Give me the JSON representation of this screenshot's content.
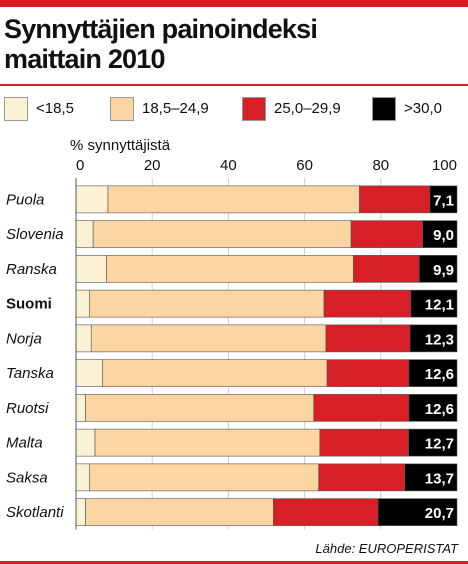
{
  "title": "Synnyttäjien painoindeksi\nmaittain 2010",
  "source": "Lähde: EUROPERISTAT",
  "colors": {
    "accent": "#d61f26",
    "grid": "#cfcfcf"
  },
  "chart_data": {
    "type": "bar",
    "orientation": "horizontal",
    "stacked": true,
    "title": "Synnyttäjien painoindeksi maittain 2010",
    "xlabel": "% synnyttäjistä",
    "xlim": [
      0,
      100
    ],
    "xticks": [
      0,
      20,
      40,
      60,
      80,
      100
    ],
    "grid": true,
    "legend_position": "top",
    "highlight_category": "Suomi",
    "categories": [
      "Puola",
      "Slovenia",
      "Ranska",
      "Suomi",
      "Norja",
      "Tanska",
      "Ruotsi",
      "Malta",
      "Saksa",
      "Skotlanti"
    ],
    "series": [
      {
        "name": "<18,5",
        "color": "#fbf2d6",
        "values": [
          8.4,
          4.5,
          8.0,
          3.5,
          4.0,
          7.0,
          2.5,
          5.0,
          3.5,
          2.5
        ]
      },
      {
        "name": "18,5–24,9",
        "color": "#fcd6a2",
        "values": [
          66.0,
          67.7,
          64.8,
          61.6,
          61.6,
          58.9,
          59.9,
          59.0,
          60.2,
          49.3
        ]
      },
      {
        "name": "25,0–29,9",
        "color": "#d61f26",
        "values": [
          18.5,
          18.8,
          17.3,
          22.8,
          22.1,
          21.5,
          25.0,
          23.3,
          22.6,
          27.5
        ]
      },
      {
        "name": ">30,0",
        "color": "#000000",
        "values": [
          7.1,
          9.0,
          9.9,
          12.1,
          12.3,
          12.6,
          12.6,
          12.7,
          13.7,
          20.7
        ]
      }
    ],
    "data_labels": [
      "7,1",
      "9,0",
      "9,9",
      "12,1",
      "12,3",
      "12,6",
      "12,6",
      "12,7",
      "13,7",
      "20,7"
    ]
  }
}
